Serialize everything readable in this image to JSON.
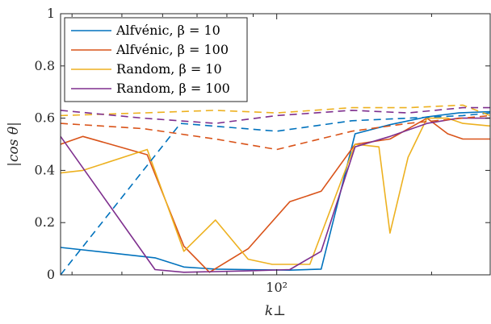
{
  "chart_data": {
    "type": "line",
    "xlabel": "k⊥",
    "ylabel": "|cos θ|",
    "xscale": "log",
    "xlim": [
      38,
      260
    ],
    "ylim": [
      0,
      1
    ],
    "xticks": [
      {
        "value": 100,
        "label": "10²"
      }
    ],
    "yticks": [
      0,
      0.2,
      0.4,
      0.6,
      0.8,
      1
    ],
    "ytick_labels": [
      "0",
      "0.2",
      "0.4",
      "0.6",
      "0.8",
      "1"
    ],
    "grid": false,
    "legend_position": "top-left",
    "series": [
      {
        "name": "Alfvénic, β = 10",
        "color": "#0072BD",
        "style": "solid",
        "x": [
          38,
          58,
          66,
          76,
          88,
          106,
          122,
          142,
          166,
          196,
          226,
          260
        ],
        "y": [
          0.105,
          0.065,
          0.03,
          0.022,
          0.02,
          0.018,
          0.022,
          0.54,
          0.575,
          0.605,
          0.62,
          0.625
        ]
      },
      {
        "name": "Alfvénic, β = 100",
        "color": "#D95319",
        "style": "solid",
        "x": [
          38,
          42,
          56,
          66,
          74,
          88,
          106,
          122,
          142,
          166,
          196,
          215,
          230,
          260
        ],
        "y": [
          0.5,
          0.53,
          0.46,
          0.11,
          0.01,
          0.1,
          0.28,
          0.32,
          0.5,
          0.52,
          0.6,
          0.54,
          0.52,
          0.52
        ]
      },
      {
        "name": "Random, β = 10",
        "color": "#EDB120",
        "style": "solid",
        "x": [
          38,
          42,
          56,
          66,
          76,
          88,
          98,
          116,
          142,
          158,
          166,
          180,
          196,
          215,
          230,
          260
        ],
        "y": [
          0.39,
          0.4,
          0.48,
          0.09,
          0.21,
          0.06,
          0.04,
          0.04,
          0.5,
          0.49,
          0.16,
          0.45,
          0.6,
          0.6,
          0.58,
          0.57
        ]
      },
      {
        "name": "Random, β = 100",
        "color": "#7E2F8E",
        "style": "solid",
        "x": [
          38,
          58,
          66,
          88,
          106,
          122,
          142,
          166,
          196,
          226,
          260
        ],
        "y": [
          0.53,
          0.02,
          0.01,
          0.015,
          0.02,
          0.09,
          0.49,
          0.53,
          0.58,
          0.6,
          0.6
        ]
      },
      {
        "color": "#0072BD",
        "style": "dashed",
        "x": [
          38,
          65,
          100,
          140,
          180,
          230,
          260
        ],
        "y": [
          0.0,
          0.58,
          0.55,
          0.59,
          0.6,
          0.61,
          0.62
        ]
      },
      {
        "color": "#D95319",
        "style": "dashed",
        "x": [
          38,
          55,
          76,
          100,
          140,
          180,
          230,
          260
        ],
        "y": [
          0.58,
          0.56,
          0.52,
          0.48,
          0.55,
          0.58,
          0.6,
          0.61
        ]
      },
      {
        "color": "#EDB120",
        "style": "dashed",
        "x": [
          38,
          55,
          76,
          100,
          140,
          180,
          230,
          260
        ],
        "y": [
          0.61,
          0.62,
          0.63,
          0.62,
          0.64,
          0.64,
          0.65,
          0.61
        ]
      },
      {
        "color": "#7E2F8E",
        "style": "dashed",
        "x": [
          38,
          55,
          76,
          100,
          140,
          180,
          230,
          260
        ],
        "y": [
          0.63,
          0.6,
          0.58,
          0.61,
          0.63,
          0.62,
          0.64,
          0.64
        ]
      }
    ]
  }
}
